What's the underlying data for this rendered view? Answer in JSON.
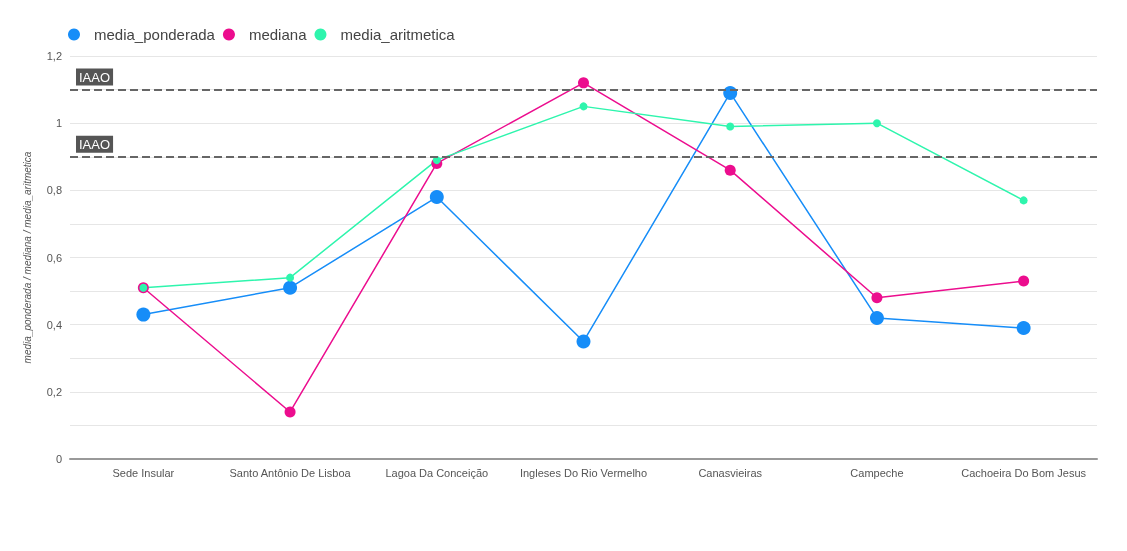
{
  "chart_data": {
    "type": "line",
    "ylabel": "media_ponderada / mediana / media_aritmetica",
    "categories": [
      "Sede Insular",
      "Santo Antônio De Lisboa",
      "Lagoa Da Conceição",
      "Ingleses Do Rio Vermelho",
      "Canasvieiras",
      "Campeche",
      "Cachoeira Do Bom Jesus"
    ],
    "series": [
      {
        "name": "media_ponderada",
        "color": "#168df8",
        "values": [
          0.43,
          0.51,
          0.78,
          0.35,
          1.09,
          0.42,
          0.39
        ]
      },
      {
        "name": "mediana",
        "color": "#ec0d8e",
        "values": [
          0.51,
          0.14,
          0.88,
          1.12,
          0.86,
          0.48,
          0.53
        ]
      },
      {
        "name": "media_aritmetica",
        "color": "#2ef5ad",
        "values": [
          0.51,
          0.54,
          0.89,
          1.05,
          0.99,
          1.0,
          0.77
        ]
      }
    ],
    "ylim": [
      0,
      1.2
    ],
    "yticks": [
      0,
      {
        "value": 0.2,
        "label": "0,2"
      },
      {
        "value": 0.4,
        "label": "0,4"
      },
      {
        "value": 0.6,
        "label": "0,6"
      },
      {
        "value": 0.8,
        "label": "0,8"
      },
      1,
      {
        "value": 1.2,
        "label": "1,2"
      }
    ],
    "ref_lines": [
      {
        "axis": "y",
        "value": 1.1,
        "label": "IAAO",
        "color": "#666666",
        "line_style": "dashed"
      },
      {
        "axis": "y",
        "value": 0.9,
        "label": "IAAO",
        "color": "#666666",
        "line_style": "dashed"
      }
    ],
    "grid": "y",
    "legend": "top left",
    "marker": "circle",
    "line_style": "solid"
  }
}
